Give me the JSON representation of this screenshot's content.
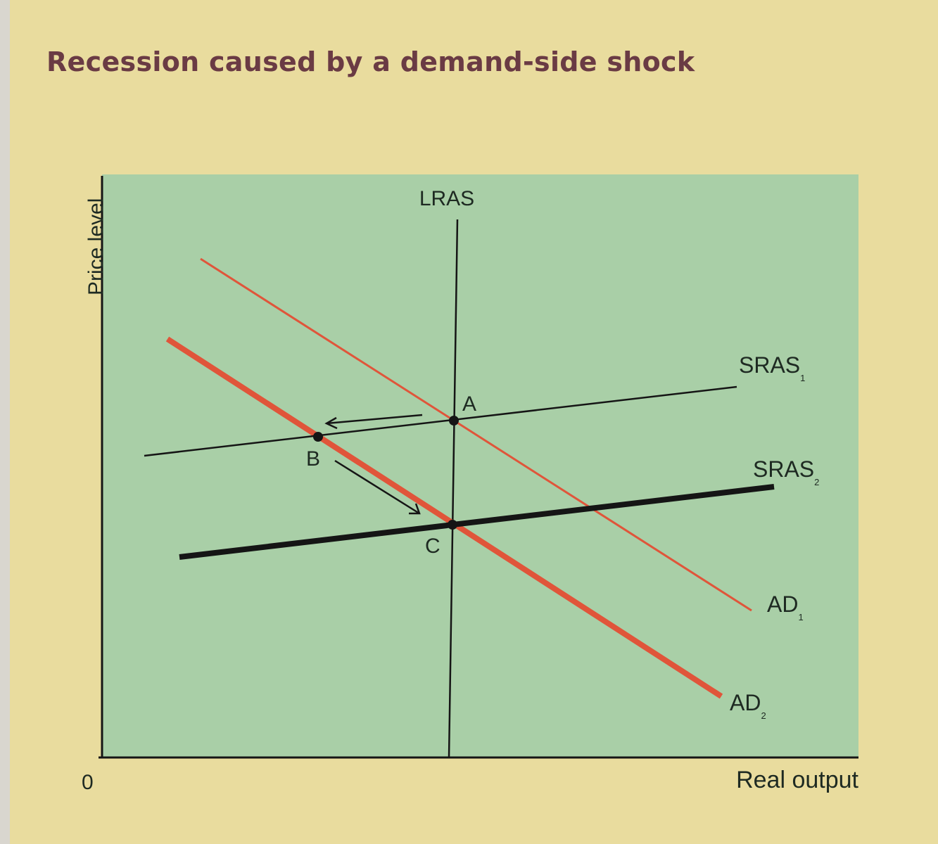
{
  "title": "Recession caused by a demand-side shock",
  "axes": {
    "y_label": "Price level",
    "x_label": "Real output",
    "origin": "0"
  },
  "curves": {
    "lras": "LRAS",
    "sras1": {
      "label": "SRAS",
      "sub": "1"
    },
    "sras2": {
      "label": "SRAS",
      "sub": "2"
    },
    "ad1": {
      "label": "AD",
      "sub": "1"
    },
    "ad2": {
      "label": "AD",
      "sub": "2"
    }
  },
  "points": {
    "a": "A",
    "b": "B",
    "c": "C"
  },
  "colors": {
    "background": "#e9dc9e",
    "plot": "#a9cfa7",
    "title": "#6a3b44",
    "ad": "#e0553a",
    "lines": "#151515"
  }
}
